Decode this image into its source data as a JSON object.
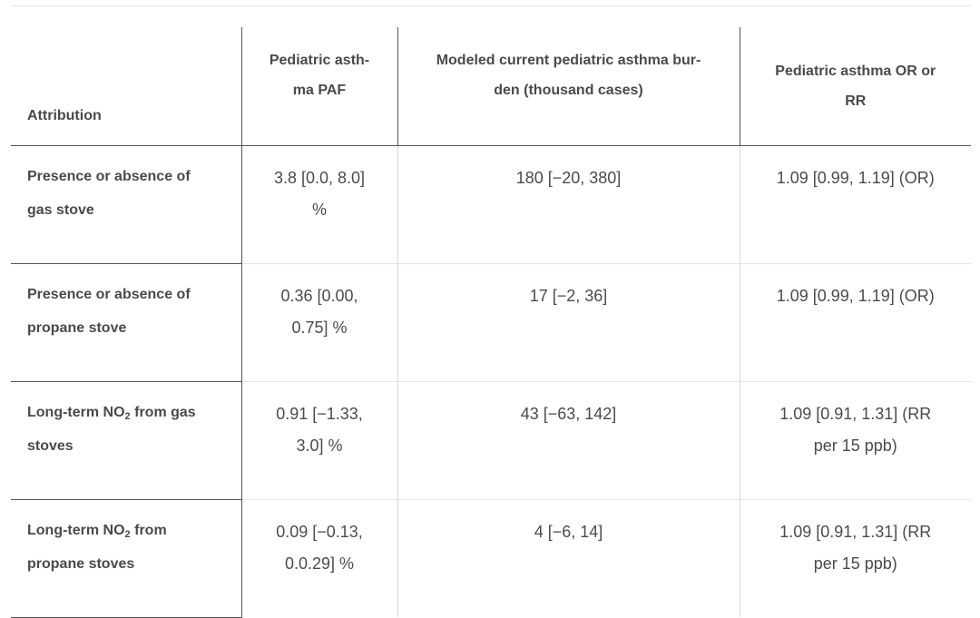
{
  "table": {
    "headers": {
      "attribution": "Attribution",
      "paf": "Pediatric asth-ma PAF",
      "paf_line1": "Pediatric asth-",
      "paf_line2": "ma PAF",
      "burden_line1": "Modeled current pediatric asthma bur-",
      "burden_line2": "den (thousand cases)",
      "or_rr_line1": "Pediatric asthma OR or",
      "or_rr_line2": "RR"
    },
    "rows": [
      {
        "attribution_line1": "Presence or absence of",
        "attribution_line2": "gas stove",
        "paf_line1": "3.8 [0.0, 8.0]",
        "paf_line2": "%",
        "burden": "180 [−20, 380]",
        "or_rr_line1": "1.09 [0.99, 1.19] (OR)",
        "or_rr_line2": ""
      },
      {
        "attribution_line1": "Presence or absence of",
        "attribution_line2": "propane stove",
        "paf_line1": "0.36 [0.00,",
        "paf_line2": "0.75] %",
        "burden": "17 [−2, 36]",
        "or_rr_line1": "1.09 [0.99, 1.19] (OR)",
        "or_rr_line2": ""
      },
      {
        "attribution_pre": "Long-term NO",
        "attribution_sub": "2",
        "attribution_post": " from gas",
        "attribution_line2": "stoves",
        "paf_line1": "0.91 [−1.33,",
        "paf_line2": "3.0] %",
        "burden": "43 [−63, 142]",
        "or_rr_line1": "1.09 [0.91, 1.31] (RR",
        "or_rr_line2": "per 15 ppb)"
      },
      {
        "attribution_pre": "Long-term NO",
        "attribution_sub": "2",
        "attribution_post": " from",
        "attribution_line2": "propane stoves",
        "paf_line1": "0.09 [−0.13,",
        "paf_line2": "0.0.29] %",
        "burden": "4 [−6, 14]",
        "or_rr_line1": "1.09 [0.91, 1.31] (RR",
        "or_rr_line2": "per 15 ppb)"
      }
    ]
  }
}
